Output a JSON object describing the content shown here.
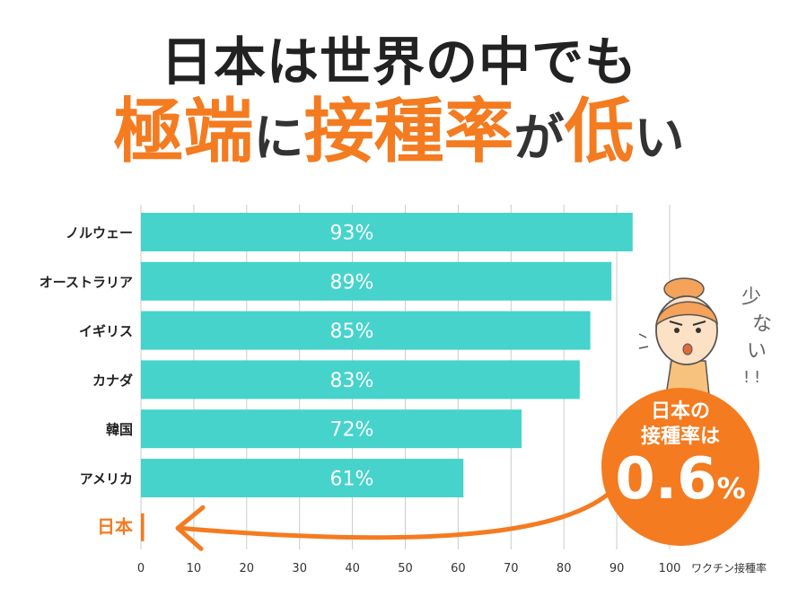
{
  "headline": {
    "line1": "日本は世界の中でも",
    "line2_parts": [
      {
        "text": "極端",
        "style": "big"
      },
      {
        "text": "に",
        "style": "small"
      },
      {
        "text": "接種率",
        "style": "big"
      },
      {
        "text": "が",
        "style": "small"
      },
      {
        "text": "低",
        "style": "big"
      },
      {
        "text": "い",
        "style": "small"
      }
    ]
  },
  "badge": {
    "line1": "日本の",
    "line2": "接種率は",
    "value": "0.6",
    "unit": "%"
  },
  "colors": {
    "bar": "#46d3cc",
    "accent": "#f47b20",
    "text": "#222222",
    "grid": "#cccccc"
  },
  "chart_data": {
    "type": "bar",
    "orientation": "horizontal",
    "categories": [
      "ノルウェー",
      "オーストラリア",
      "イギリス",
      "カナダ",
      "韓国",
      "アメリカ",
      "日本"
    ],
    "values": [
      93,
      89,
      85,
      83,
      72,
      61,
      0.6
    ],
    "value_labels": [
      "93%",
      "89%",
      "85%",
      "83%",
      "72%",
      "61%",
      ""
    ],
    "highlight_category": "日本",
    "xlabel": "ワクチン接種率",
    "xlim": [
      0,
      100
    ],
    "xticks": [
      0,
      10,
      20,
      30,
      40,
      50,
      60,
      70,
      80,
      90,
      100
    ],
    "grid": true
  },
  "illustration": {
    "caption": "少ない!!"
  }
}
